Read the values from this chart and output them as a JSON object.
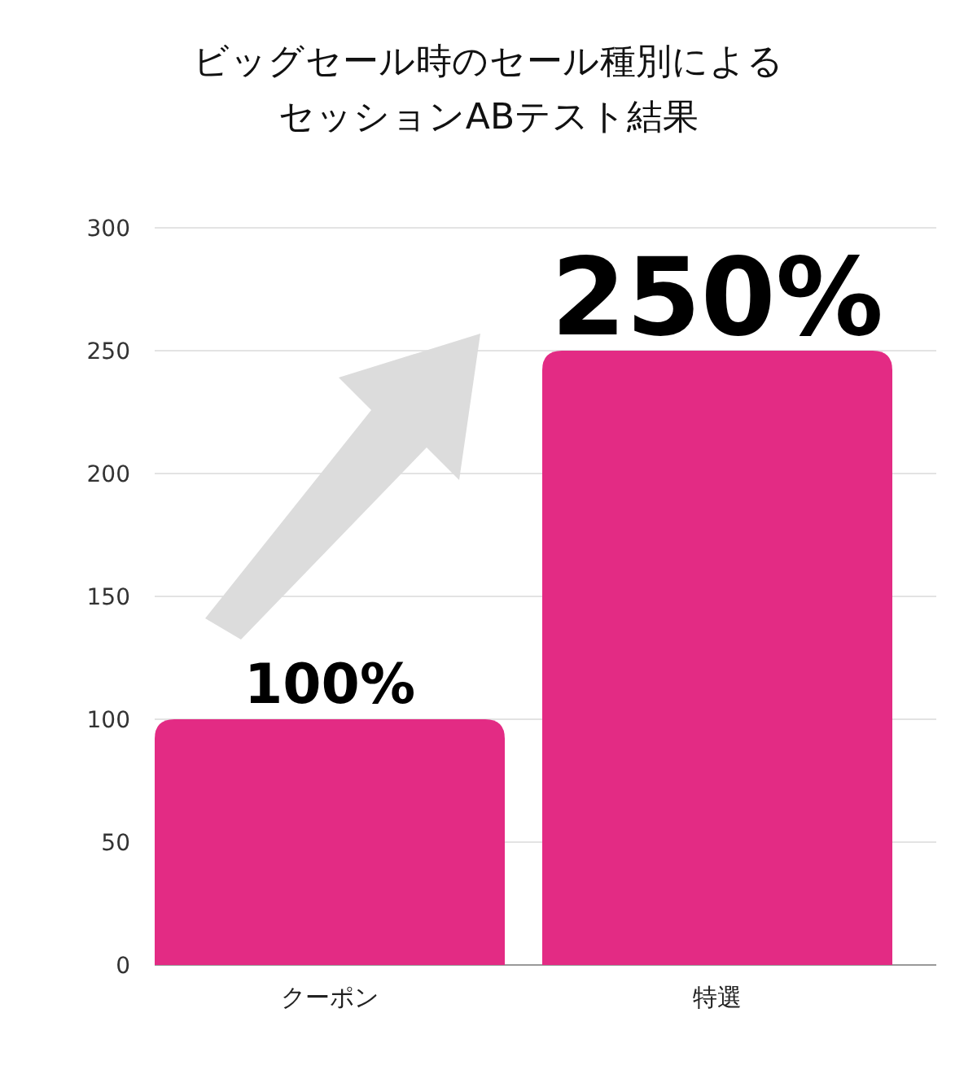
{
  "chart_data": {
    "type": "bar",
    "title": "ビッグセール時のセール種別によるセッションABテスト結果",
    "categories": [
      "クーポン",
      "特選"
    ],
    "values": [
      100,
      250
    ],
    "value_labels": [
      "100%",
      "250%"
    ],
    "color": "#e32b84",
    "ylim": [
      0,
      300
    ],
    "yticks": [
      0,
      50,
      100,
      150,
      200,
      250,
      300
    ],
    "grid": "y"
  }
}
